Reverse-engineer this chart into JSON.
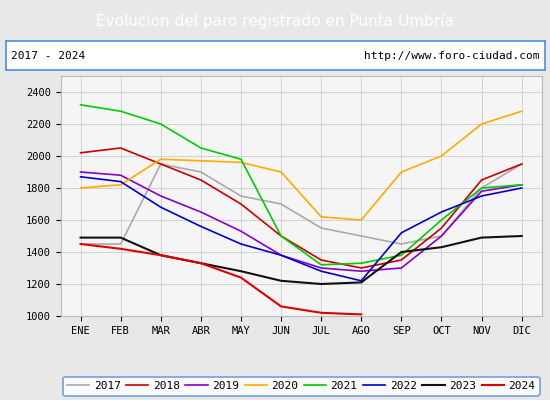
{
  "title": "Evolucion del paro registrado en Punta Umbría",
  "subtitle_left": "2017 - 2024",
  "subtitle_right": "http://www.foro-ciudad.com",
  "months": [
    "ENE",
    "FEB",
    "MAR",
    "ABR",
    "MAY",
    "JUN",
    "JUL",
    "AGO",
    "SEP",
    "OCT",
    "NOV",
    "DIC"
  ],
  "ylim": [
    1000,
    2500
  ],
  "yticks": [
    1000,
    1200,
    1400,
    1600,
    1800,
    2000,
    2200,
    2400
  ],
  "series": {
    "2017": {
      "color": "#aaaaaa",
      "linewidth": 1.2,
      "data": [
        1450,
        1450,
        1950,
        1900,
        1750,
        1700,
        1550,
        1500,
        1450,
        1500,
        1800,
        1950
      ]
    },
    "2018": {
      "color": "#cc0000",
      "linewidth": 1.2,
      "data": [
        2020,
        2050,
        1950,
        1850,
        1700,
        1500,
        1350,
        1300,
        1350,
        1550,
        1850,
        1950
      ]
    },
    "2019": {
      "color": "#8800cc",
      "linewidth": 1.2,
      "data": [
        1900,
        1880,
        1750,
        1650,
        1530,
        1380,
        1300,
        1280,
        1300,
        1500,
        1780,
        1820
      ]
    },
    "2020": {
      "color": "#ffaa00",
      "linewidth": 1.2,
      "data": [
        1800,
        1820,
        1980,
        1970,
        1960,
        1900,
        1620,
        1600,
        1900,
        2000,
        2200,
        2280
      ]
    },
    "2021": {
      "color": "#00cc00",
      "linewidth": 1.2,
      "data": [
        2320,
        2280,
        2200,
        2050,
        1980,
        1500,
        1320,
        1330,
        1380,
        1600,
        1800,
        1820
      ]
    },
    "2022": {
      "color": "#0000cc",
      "linewidth": 1.2,
      "data": [
        1870,
        1840,
        1680,
        1560,
        1450,
        1380,
        1280,
        1220,
        1520,
        1650,
        1750,
        1800
      ]
    },
    "2023": {
      "color": "#111111",
      "linewidth": 1.5,
      "data": [
        1490,
        1490,
        1380,
        1330,
        1280,
        1220,
        1200,
        1210,
        1400,
        1430,
        1490,
        1500
      ]
    },
    "2024": {
      "color": "#dd0000",
      "linewidth": 1.5,
      "data": [
        1450,
        1420,
        1380,
        1330,
        1240,
        1060,
        1020,
        1010,
        null,
        null,
        null,
        null
      ]
    }
  },
  "title_bg": "#4d90d9",
  "title_color": "white",
  "title_fontsize": 11,
  "subtitle_fontsize": 8,
  "axis_label_fontsize": 7.5,
  "legend_fontsize": 8,
  "background_color": "#e8e8e8",
  "plot_bg": "#f5f5f5",
  "grid_color": "#cccccc",
  "border_color": "#4d90d9"
}
